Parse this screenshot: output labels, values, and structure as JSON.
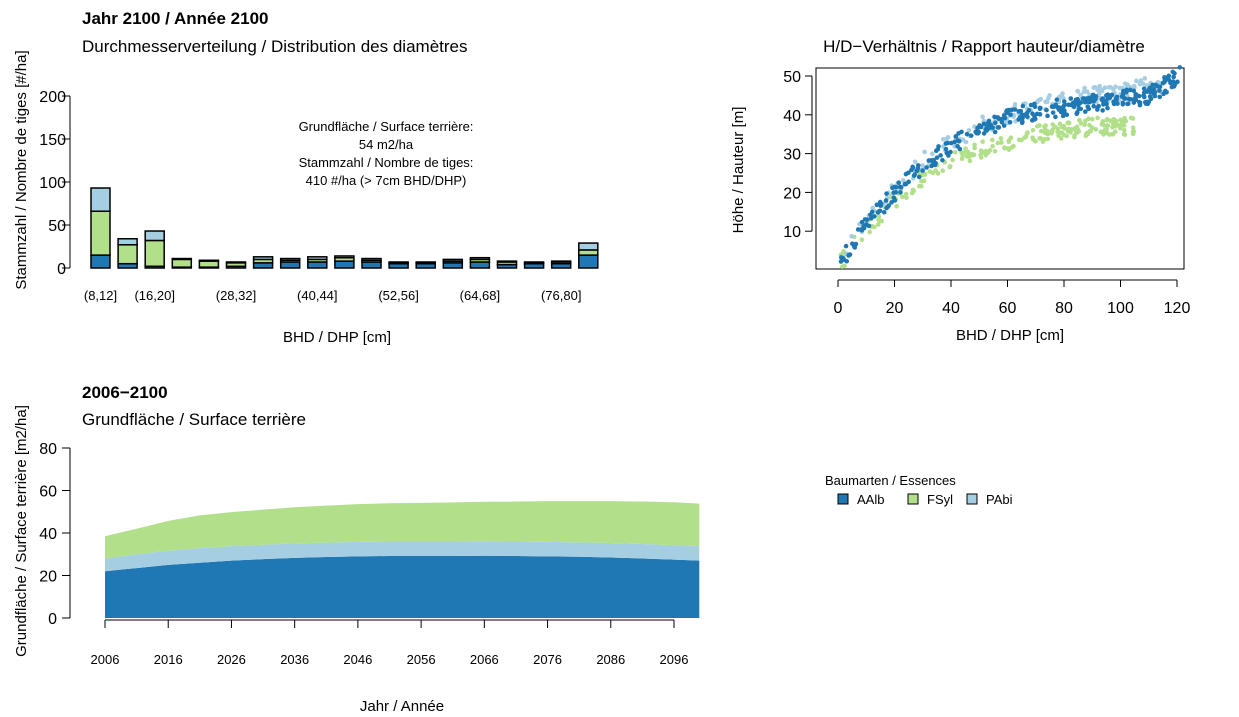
{
  "colors": {
    "AAlb": "#1f78b4",
    "FSyl": "#b2df8a",
    "PAbi": "#a6cee3"
  },
  "chart_data": [
    {
      "id": "diameter_distribution",
      "type": "bar",
      "stacked": true,
      "title": "Jahr 2100 / Année 2100",
      "subtitle": "Durchmesserverteilung / Distribution des diamètres",
      "xlabel": "BHD / DHP [cm]",
      "ylabel": "Stammzahl / Nombre de tiges [#/ha]",
      "ylim": [
        0,
        200
      ],
      "yticks": [
        0,
        50,
        100,
        150,
        200
      ],
      "annotation": [
        "Grundfläche / Surface terrière:",
        "54 m2/ha",
        "Stammzahl / Nombre de tiges:",
        "410 #/ha (> 7cm BHD/DHP)"
      ],
      "categories": [
        "(8,12]",
        "(12,16]",
        "(16,20]",
        "(20,24]",
        "(24,28]",
        "(28,32]",
        "(32,36]",
        "(36,40]",
        "(40,44]",
        "(44,48]",
        "(48,52]",
        "(52,56]",
        "(56,60]",
        "(60,64]",
        "(64,68]",
        "(68,72]",
        "(72,76]",
        "(76,80]",
        "(80,Inf]"
      ],
      "shown_tick_labels": [
        "(8,12]",
        "(16,20]",
        "(28,32]",
        "(40,44]",
        "(52,56]",
        "(64,68]",
        "(76,80]"
      ],
      "series": [
        {
          "name": "AAlb",
          "values": [
            15,
            5,
            2,
            1,
            1,
            2,
            6,
            7,
            7,
            8,
            7,
            5,
            5,
            6,
            7,
            4,
            5,
            5,
            15
          ]
        },
        {
          "name": "FSyl",
          "values": [
            51,
            22,
            30,
            9,
            7,
            4,
            4,
            2,
            3,
            4,
            2,
            1,
            1,
            2,
            3,
            3,
            1,
            2,
            6
          ]
        },
        {
          "name": "PAbi",
          "values": [
            27,
            7,
            11,
            1,
            1,
            1,
            3,
            2,
            3,
            2,
            2,
            1,
            1,
            2,
            2,
            1,
            1,
            1,
            8
          ]
        }
      ]
    },
    {
      "id": "hd_ratio",
      "type": "scatter",
      "title": "H/D−Verhältnis / Rapport hauteur/diamètre",
      "xlabel": "BHD / DHP [cm]",
      "ylabel": "Höhe / Hauteur [m]",
      "xlim": [
        0,
        125
      ],
      "ylim": [
        0,
        52
      ],
      "xticks": [
        0,
        20,
        40,
        60,
        80,
        100,
        120
      ],
      "yticks": [
        10,
        20,
        30,
        40,
        50
      ],
      "series": [
        {
          "name": "AAlb",
          "x_range": [
            1,
            121
          ],
          "y_at": [
            [
              1,
              2
            ],
            [
              10,
              12
            ],
            [
              20,
              20
            ],
            [
              30,
              27
            ],
            [
              40,
              32
            ],
            [
              50,
              36
            ],
            [
              60,
              39
            ],
            [
              70,
              41
            ],
            [
              80,
              42
            ],
            [
              90,
              43
            ],
            [
              100,
              44
            ],
            [
              110,
              45
            ],
            [
              121,
              50
            ]
          ]
        },
        {
          "name": "FSyl",
          "x_range": [
            1,
            105
          ],
          "y_at": [
            [
              1,
              2
            ],
            [
              10,
              11
            ],
            [
              20,
              18
            ],
            [
              30,
              24
            ],
            [
              40,
              28
            ],
            [
              50,
              31
            ],
            [
              60,
              33
            ],
            [
              70,
              35
            ],
            [
              80,
              36
            ],
            [
              90,
              37
            ],
            [
              105,
              37
            ]
          ]
        },
        {
          "name": "PAbi",
          "x_range": [
            1,
            115
          ],
          "y_at": [
            [
              1,
              3
            ],
            [
              10,
              13
            ],
            [
              20,
              21
            ],
            [
              30,
              28
            ],
            [
              40,
              33
            ],
            [
              50,
              37
            ],
            [
              60,
              40
            ],
            [
              70,
              42
            ],
            [
              80,
              44
            ],
            [
              90,
              45
            ],
            [
              100,
              46
            ],
            [
              115,
              48
            ]
          ]
        }
      ]
    },
    {
      "id": "basal_area",
      "type": "area",
      "stacked": true,
      "title": "2006−2100",
      "subtitle": "Grundfläche / Surface terrière",
      "xlabel": "Jahr / Année",
      "ylabel": "Grundfläche / Surface terrière [m2/ha]",
      "ylim": [
        0,
        80
      ],
      "yticks": [
        0,
        20,
        40,
        60,
        80
      ],
      "xticks": [
        2006,
        2016,
        2026,
        2036,
        2046,
        2056,
        2066,
        2076,
        2086,
        2096
      ],
      "x": [
        2006,
        2011,
        2016,
        2021,
        2026,
        2031,
        2036,
        2041,
        2046,
        2051,
        2056,
        2061,
        2066,
        2071,
        2076,
        2081,
        2086,
        2091,
        2096,
        2100
      ],
      "series": [
        {
          "name": "AAlb",
          "values": [
            22,
            23.5,
            25,
            26,
            27,
            27.7,
            28.3,
            28.7,
            29,
            29.2,
            29.2,
            29.2,
            29.3,
            29.2,
            29,
            28.8,
            28.5,
            28,
            27.5,
            27
          ]
        },
        {
          "name": "PAbi",
          "values": [
            6,
            6.5,
            6.7,
            6.8,
            6.8,
            6.8,
            6.8,
            6.8,
            6.8,
            6.8,
            6.8,
            6.8,
            6.8,
            6.8,
            6.8,
            6.8,
            6.8,
            6.8,
            6.8,
            6.8
          ]
        },
        {
          "name": "FSyl",
          "values": [
            10.5,
            12,
            14,
            15.5,
            16,
            16.5,
            17,
            17.4,
            17.8,
            18,
            18.2,
            18.4,
            18.6,
            18.8,
            19.2,
            19.4,
            19.7,
            20,
            20.2,
            20
          ]
        }
      ]
    }
  ],
  "legend": {
    "title": "Baumarten / Essences",
    "items": [
      "AAlb",
      "FSyl",
      "PAbi"
    ]
  }
}
